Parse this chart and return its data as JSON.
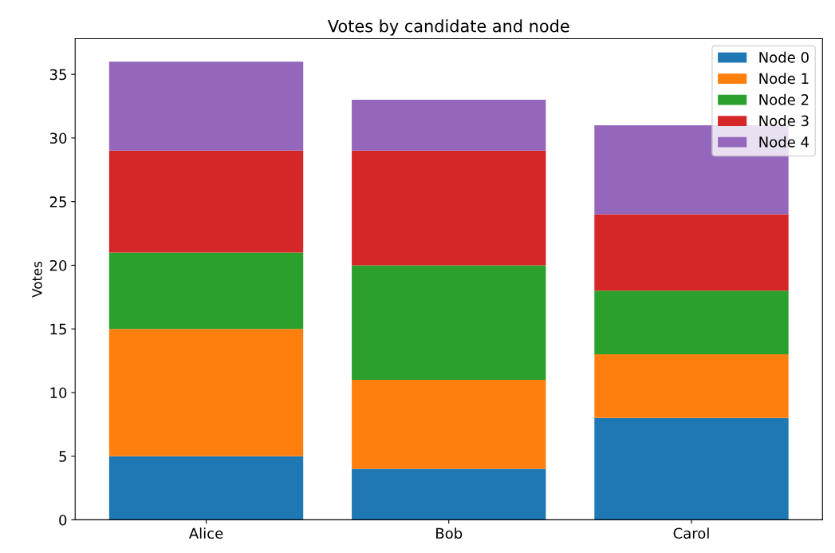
{
  "chart_data": {
    "type": "bar",
    "title": "Votes by candidate and node",
    "ylabel": "Votes",
    "categories": [
      "Alice",
      "Bob",
      "Carol"
    ],
    "stacked": true,
    "series": [
      {
        "name": "Node 0",
        "color": "#1f77b4",
        "values": [
          5,
          4,
          8
        ]
      },
      {
        "name": "Node 1",
        "color": "#ff7f0e",
        "values": [
          10,
          7,
          5
        ]
      },
      {
        "name": "Node 2",
        "color": "#2ca02c",
        "values": [
          6,
          9,
          5
        ]
      },
      {
        "name": "Node 3",
        "color": "#d62728",
        "values": [
          8,
          9,
          6
        ]
      },
      {
        "name": "Node 4",
        "color": "#9467bd",
        "values": [
          7,
          4,
          7
        ]
      }
    ],
    "ylim": [
      0,
      37.8
    ],
    "yticks": [
      0,
      5,
      10,
      15,
      20,
      25,
      30,
      35
    ],
    "grid": false,
    "legend": "top right"
  }
}
